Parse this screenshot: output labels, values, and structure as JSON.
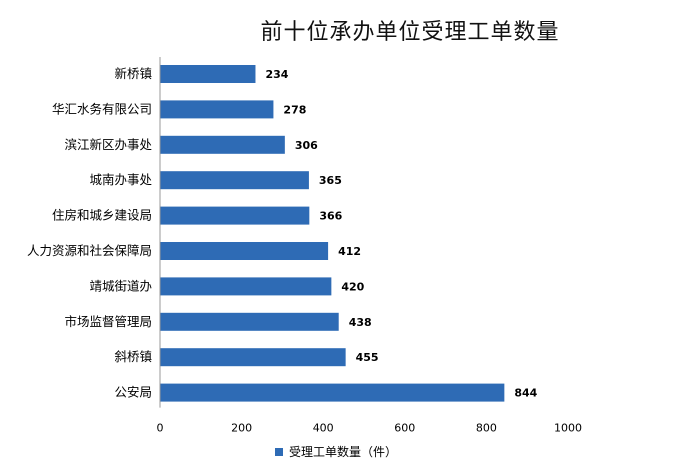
{
  "chart_data": {
    "type": "bar",
    "orientation": "horizontal",
    "title": "前十位承办单位受理工单数量",
    "categories": [
      "新桥镇",
      "华汇水务有限公司",
      "滨江新区办事处",
      "城南办事处",
      "住房和城乡建设局",
      "人力资源和社会保障局",
      "靖城街道办",
      "市场监督管理局",
      "斜桥镇",
      "公安局"
    ],
    "series": [
      {
        "name": "受理工单数量（件）",
        "values": [
          234,
          278,
          306,
          365,
          366,
          412,
          420,
          438,
          455,
          844
        ]
      }
    ],
    "xlim": [
      0,
      1000
    ],
    "xticks": [
      0,
      200,
      400,
      600,
      800,
      1000
    ],
    "xlabel": "",
    "ylabel": "",
    "grid": false,
    "legend": "bottom",
    "colors": {
      "bar": "#2e6bb5"
    }
  }
}
